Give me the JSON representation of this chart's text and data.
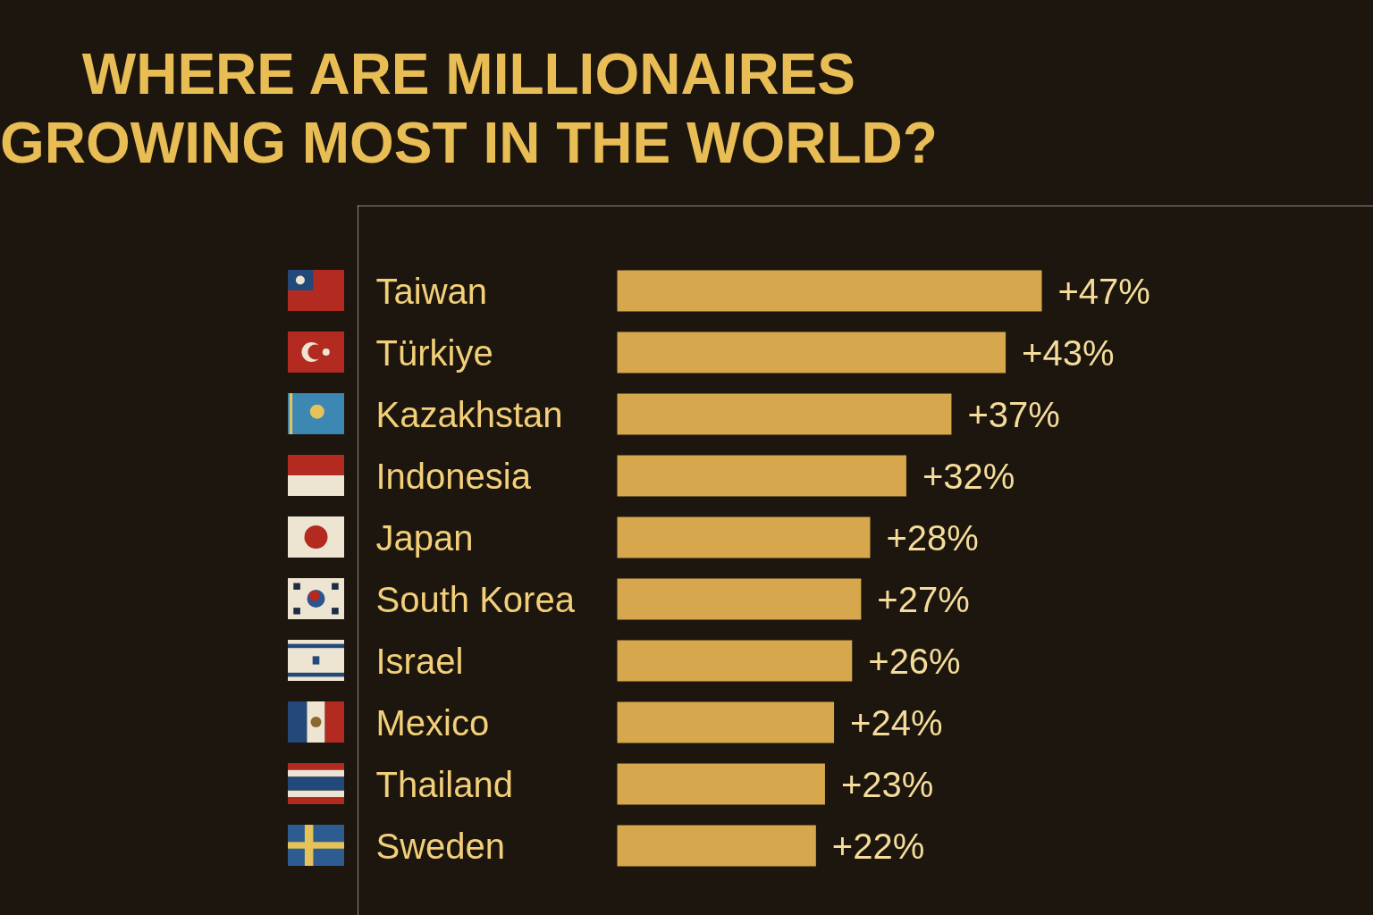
{
  "chart_data": {
    "type": "bar",
    "orientation": "horizontal",
    "title": "WHERE ARE MILLIONAIRES\nGROWING MOST IN THE WORLD?",
    "categories": [
      "Taiwan",
      "Türkiye",
      "Kazakhstan",
      "Indonesia",
      "Japan",
      "South Korea",
      "Israel",
      "Mexico",
      "Thailand",
      "Sweden"
    ],
    "values": [
      47,
      43,
      37,
      32,
      28,
      27,
      26,
      24,
      23,
      22
    ],
    "value_labels": [
      "+47%",
      "+43%",
      "+37%",
      "+32%",
      "+28%",
      "+27%",
      "+26%",
      "+24%",
      "+23%",
      "+22%"
    ],
    "color": "#d6a74c",
    "tick_labels": "y"
  }
}
